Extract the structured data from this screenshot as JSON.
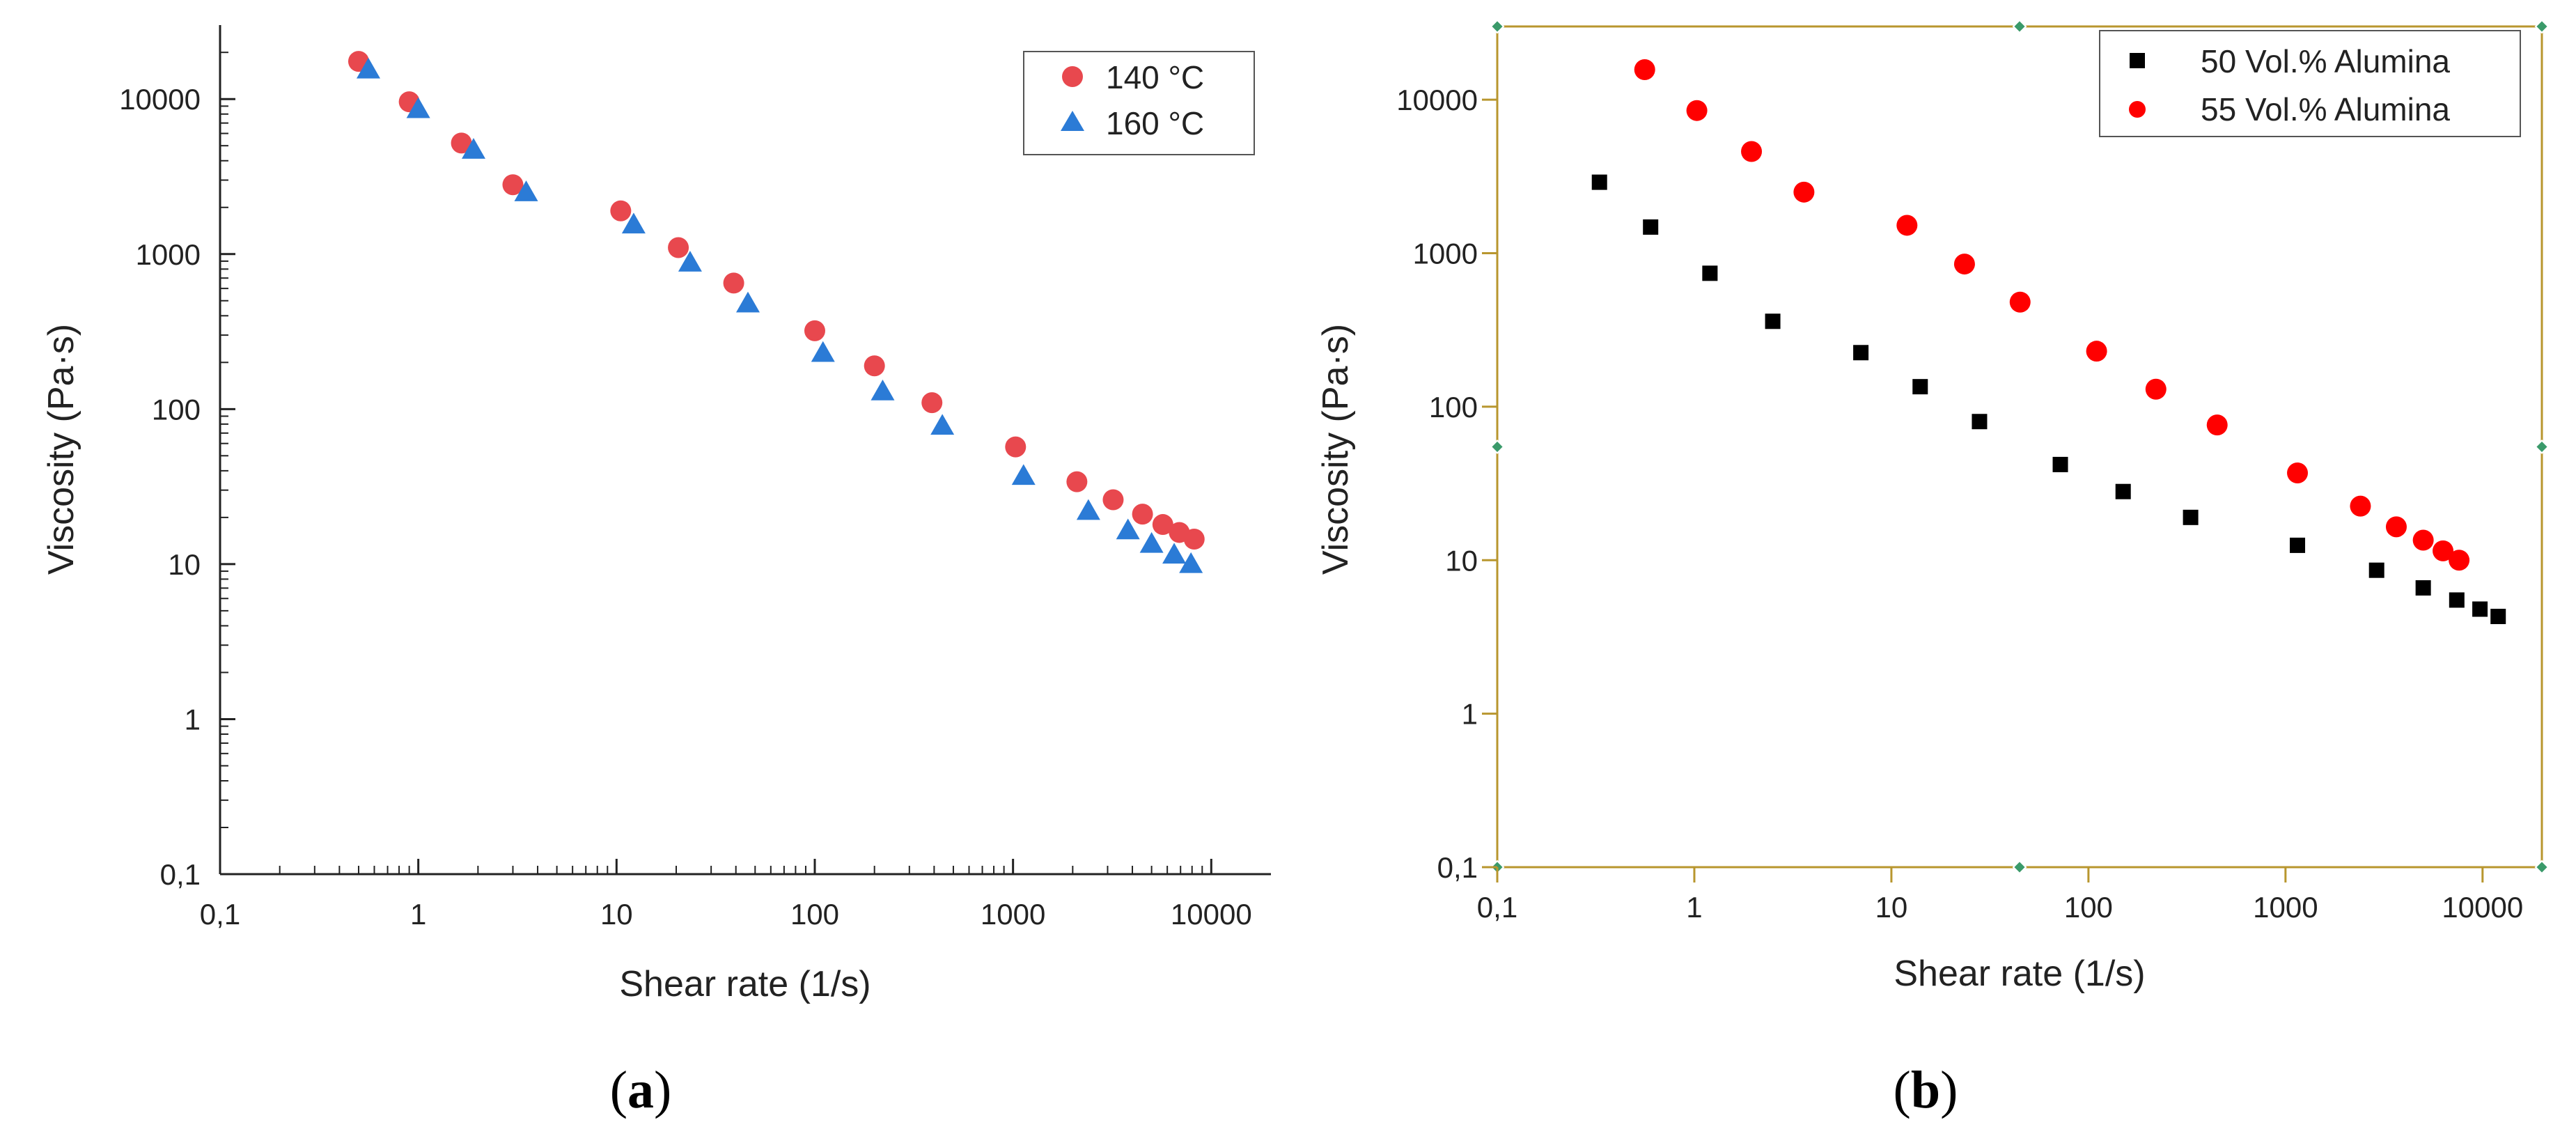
{
  "chart_data": [
    {
      "id": "a",
      "type": "scatter",
      "panel_label_open": "(",
      "panel_label": "a",
      "panel_label_close": ")",
      "xlabel": "Shear rate (1/s)",
      "ylabel": "Viscosity (Pa·s)",
      "x_scale": "log",
      "y_scale": "log",
      "xlim": [
        0.1,
        20000
      ],
      "ylim": [
        0.1,
        30000
      ],
      "x_ticks": [
        0.1,
        1,
        10,
        100,
        1000,
        10000
      ],
      "x_tick_labels": [
        "0,1",
        "1",
        "10",
        "100",
        "1000",
        "10000"
      ],
      "y_ticks": [
        0.1,
        1,
        10,
        100,
        1000,
        10000
      ],
      "y_tick_labels": [
        "0,1",
        "1",
        "10",
        "100",
        "1000",
        "10000"
      ],
      "legend_position": "top-right",
      "frame": "open-axes",
      "series": [
        {
          "name": "140 °C",
          "marker": "circle",
          "color": "#E8484E",
          "x": [
            0.5,
            0.9,
            1.65,
            3.0,
            10.5,
            20.5,
            39,
            100,
            200,
            390,
            1030,
            2100,
            3200,
            4500,
            5700,
            6900,
            8200
          ],
          "y": [
            17500,
            9600,
            5200,
            2800,
            1900,
            1100,
            650,
            320,
            190,
            110,
            57,
            34,
            26,
            21,
            18,
            16,
            14.5
          ]
        },
        {
          "name": "160 °C",
          "marker": "triangle",
          "color": "#2B7BD6",
          "x": [
            0.56,
            1.0,
            1.9,
            3.5,
            12.2,
            23.5,
            46,
            110,
            220,
            440,
            1130,
            2400,
            3800,
            5000,
            6500,
            7900
          ],
          "y": [
            15500,
            8600,
            4700,
            2500,
            1550,
            880,
            480,
            230,
            130,
            78,
            37,
            22,
            16.5,
            13.5,
            11.5,
            10
          ]
        }
      ]
    },
    {
      "id": "b",
      "type": "scatter",
      "panel_label_open": "(",
      "panel_label": "b",
      "panel_label_close": ")",
      "xlabel": "Shear rate (1/s)",
      "ylabel": "Viscosity (Pa·s)",
      "x_scale": "log",
      "y_scale": "log",
      "xlim": [
        0.1,
        20000
      ],
      "ylim": [
        0.1,
        30000
      ],
      "x_ticks": [
        0.1,
        1,
        10,
        100,
        1000,
        10000
      ],
      "x_tick_labels": [
        "0,1",
        "1",
        "10",
        "100",
        "1000",
        "10000"
      ],
      "y_ticks": [
        0.1,
        1,
        10,
        100,
        1000,
        10000
      ],
      "y_tick_labels": [
        "0,1",
        "1",
        "10",
        "100",
        "1000",
        "10000"
      ],
      "legend_position": "top-right",
      "frame": "boxed",
      "frame_color": "#B8962E",
      "handle_color": "#3A9A6A",
      "series": [
        {
          "name": "50 Vol.% Alumina",
          "marker": "square",
          "color": "#000000",
          "x": [
            0.33,
            0.6,
            1.2,
            2.5,
            7,
            14,
            28,
            72,
            150,
            330,
            1150,
            2900,
            5000,
            7400,
            9700,
            12000
          ],
          "y": [
            2900,
            1480,
            740,
            360,
            225,
            135,
            80,
            42,
            28,
            19,
            12.5,
            8.6,
            6.6,
            5.5,
            4.8,
            4.3
          ]
        },
        {
          "name": "55 Vol.% Alumina",
          "marker": "circle",
          "color": "#FF0000",
          "x": [
            0.56,
            1.03,
            1.95,
            3.6,
            12,
            23.5,
            45,
            110,
            220,
            450,
            1150,
            2400,
            3650,
            5000,
            6300,
            7600
          ],
          "y": [
            15700,
            8500,
            4600,
            2500,
            1520,
            850,
            480,
            230,
            130,
            76,
            37,
            22.5,
            16.5,
            13.5,
            11.5,
            10
          ]
        }
      ]
    }
  ]
}
